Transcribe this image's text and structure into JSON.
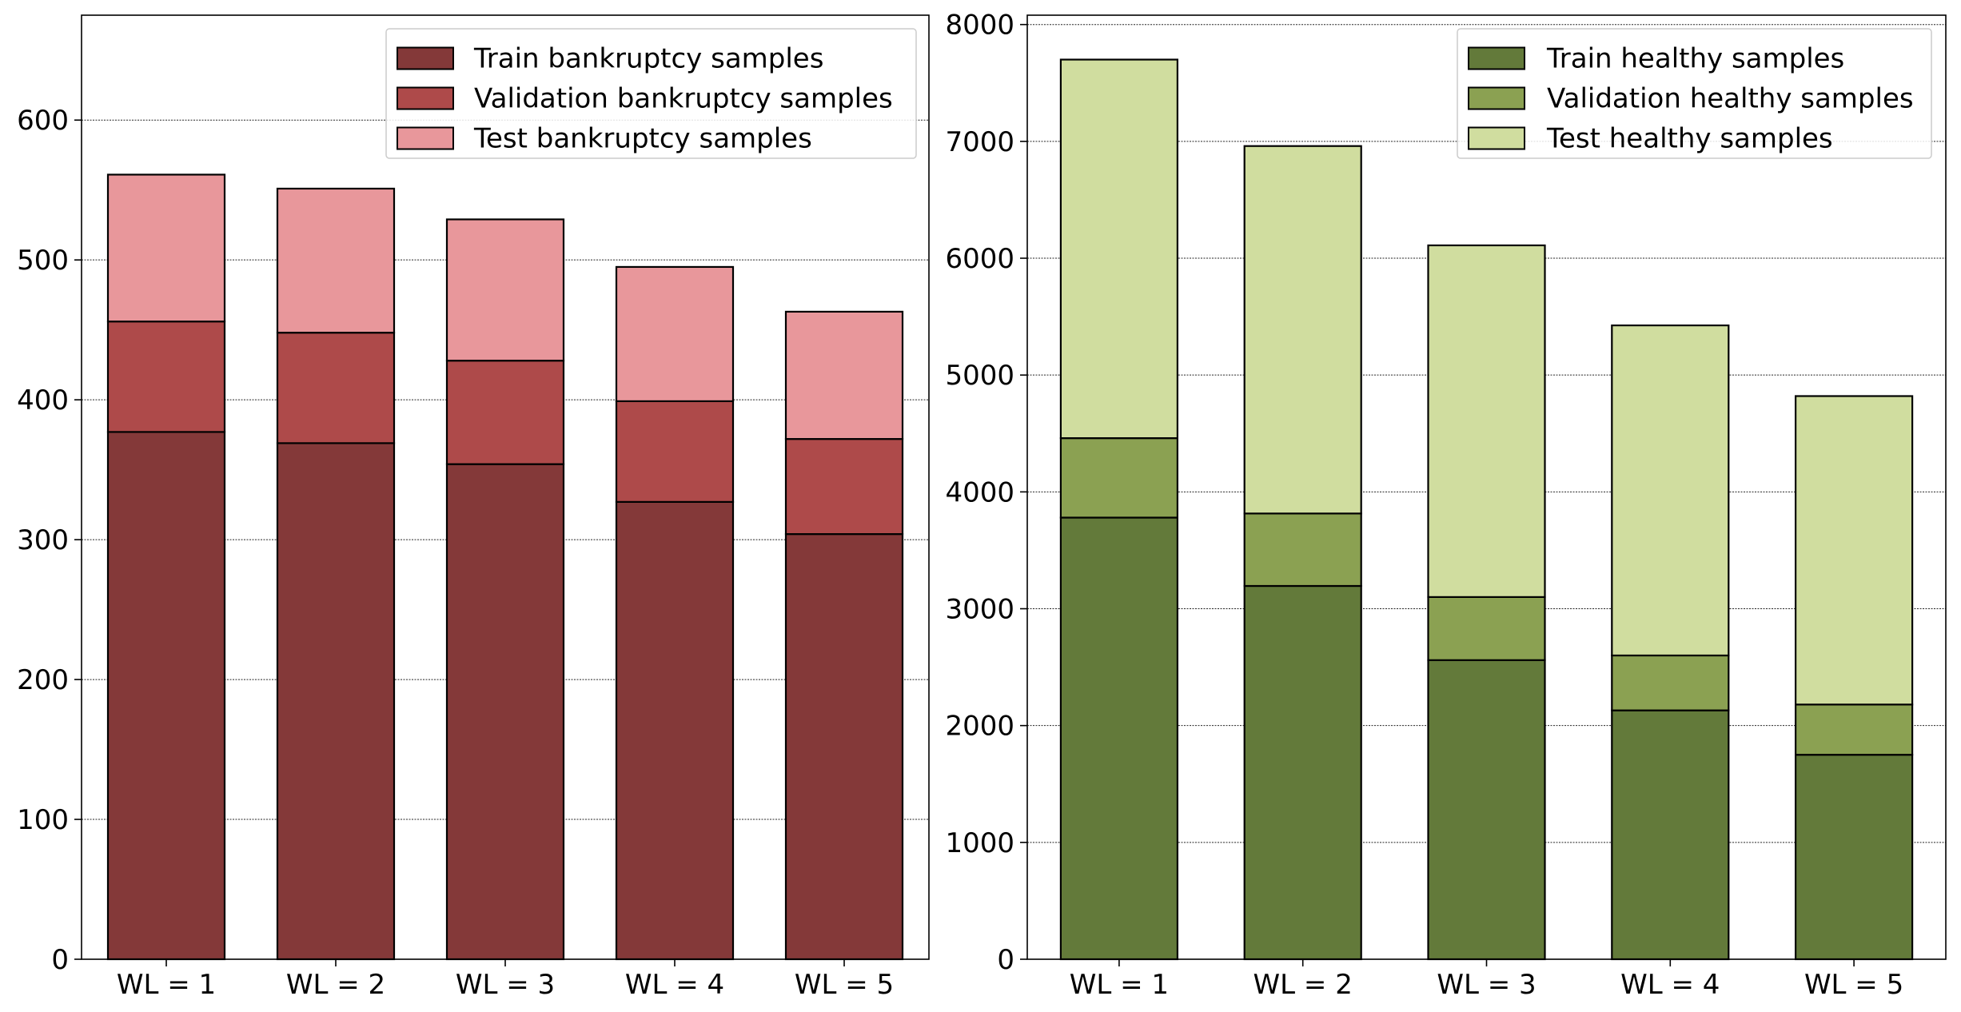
{
  "chart_data": [
    {
      "type": "bar",
      "stacked": true,
      "categories": [
        "WL = 1",
        "WL = 2",
        "WL = 3",
        "WL = 4",
        "WL = 5"
      ],
      "series": [
        {
          "name": "Train bankruptcy samples",
          "values": [
            377,
            369,
            354,
            327,
            304
          ],
          "color": "#843939"
        },
        {
          "name": "Validation bankruptcy samples",
          "values": [
            79,
            79,
            74,
            72,
            68
          ],
          "color": "#ae4a4a"
        },
        {
          "name": "Test bankruptcy samples",
          "values": [
            105,
            103,
            101,
            96,
            91
          ],
          "color": "#e8979b"
        }
      ],
      "title": "",
      "xlabel": "",
      "ylabel": "",
      "ylim": [
        0,
        675
      ],
      "yticks": [
        0,
        100,
        200,
        300,
        400,
        500,
        600
      ],
      "grid": true,
      "legend_position": "top-right"
    },
    {
      "type": "bar",
      "stacked": true,
      "categories": [
        "WL = 1",
        "WL = 2",
        "WL = 3",
        "WL = 4",
        "WL = 5"
      ],
      "series": [
        {
          "name": "Train healthy samples",
          "values": [
            3780,
            3195,
            2560,
            2130,
            1750
          ],
          "color": "#637a3a"
        },
        {
          "name": "Validation healthy samples",
          "values": [
            680,
            620,
            540,
            470,
            430
          ],
          "color": "#8ba152"
        },
        {
          "name": "Test healthy samples",
          "values": [
            3240,
            3145,
            3010,
            2825,
            2640
          ],
          "color": "#d0dd9f"
        }
      ],
      "title": "",
      "xlabel": "",
      "ylabel": "",
      "ylim": [
        0,
        8080
      ],
      "yticks": [
        0,
        1000,
        2000,
        3000,
        4000,
        5000,
        6000,
        7000,
        8000
      ],
      "grid": true,
      "legend_position": "top-right"
    }
  ]
}
